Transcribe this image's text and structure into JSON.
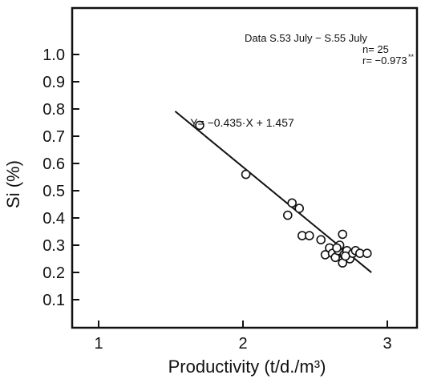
{
  "chart_data": {
    "type": "scatter",
    "title": "",
    "xlabel": "Productivity  (t/d./m³)",
    "ylabel": "Si  (%)",
    "xlim": [
      0.85,
      3.2
    ],
    "ylim": [
      0.0,
      1.15
    ],
    "x_ticks": [
      1,
      2,
      3
    ],
    "x_tick_labels": [
      "1",
      "2",
      "3"
    ],
    "y_ticks": [
      0.1,
      0.2,
      0.3,
      0.4,
      0.5,
      0.6,
      0.7,
      0.8,
      0.9,
      1.0
    ],
    "y_tick_labels": [
      "0.1",
      "0.2",
      "0.3",
      "0.4",
      "0.5",
      "0.6",
      "0.7",
      "0.8",
      "0.9",
      "1.0"
    ],
    "grid": false,
    "legend": "none",
    "points": [
      {
        "x": 1.7,
        "y": 0.74
      },
      {
        "x": 2.02,
        "y": 0.56
      },
      {
        "x": 2.34,
        "y": 0.455
      },
      {
        "x": 2.39,
        "y": 0.435
      },
      {
        "x": 2.31,
        "y": 0.41
      },
      {
        "x": 2.41,
        "y": 0.335
      },
      {
        "x": 2.46,
        "y": 0.335
      },
      {
        "x": 2.54,
        "y": 0.32
      },
      {
        "x": 2.69,
        "y": 0.34
      },
      {
        "x": 2.57,
        "y": 0.265
      },
      {
        "x": 2.6,
        "y": 0.29
      },
      {
        "x": 2.62,
        "y": 0.27
      },
      {
        "x": 2.64,
        "y": 0.255
      },
      {
        "x": 2.66,
        "y": 0.28
      },
      {
        "x": 2.67,
        "y": 0.3
      },
      {
        "x": 2.69,
        "y": 0.235
      },
      {
        "x": 2.7,
        "y": 0.265
      },
      {
        "x": 2.72,
        "y": 0.28
      },
      {
        "x": 2.74,
        "y": 0.25
      },
      {
        "x": 2.76,
        "y": 0.27
      },
      {
        "x": 2.78,
        "y": 0.28
      },
      {
        "x": 2.81,
        "y": 0.27
      },
      {
        "x": 2.86,
        "y": 0.27
      },
      {
        "x": 2.65,
        "y": 0.29
      },
      {
        "x": 2.71,
        "y": 0.26
      }
    ],
    "regression": {
      "slope": -0.435,
      "intercept": 1.457,
      "x_range": [
        1.53,
        2.89
      ],
      "equation_text": "Y= −0.435·X + 1.457"
    },
    "annotation": {
      "line1": "Data S.53 July − S.55 July",
      "line2": "n=  25",
      "line3": "r= −0.973",
      "line3_sup": "**"
    }
  }
}
